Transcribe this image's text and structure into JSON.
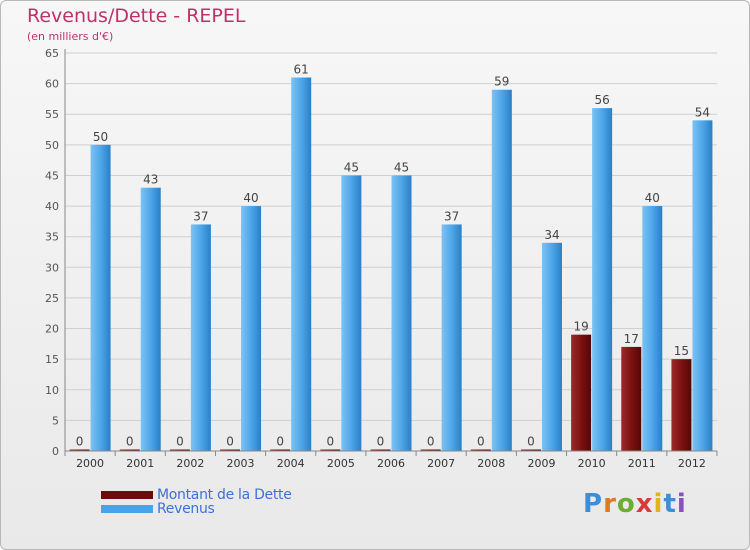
{
  "title": "Revenus/Dette - REPEL",
  "subtitle": "(en milliers d'€)",
  "logo": "Proxiti",
  "chart_data": {
    "type": "bar",
    "categories": [
      "2000",
      "2001",
      "2002",
      "2003",
      "2004",
      "2005",
      "2006",
      "2007",
      "2008",
      "2009",
      "2010",
      "2011",
      "2012"
    ],
    "series": [
      {
        "name": "Montant de la Dette",
        "color": "#7a0f0f",
        "values": [
          0,
          0,
          0,
          0,
          0,
          0,
          0,
          0,
          0,
          0,
          19,
          17,
          15
        ]
      },
      {
        "name": "Revenus",
        "color": "#4aa3e6",
        "values": [
          50,
          43,
          37,
          40,
          61,
          45,
          45,
          37,
          59,
          34,
          56,
          40,
          54
        ]
      }
    ],
    "yticks": [
      0,
      5,
      10,
      15,
      20,
      25,
      30,
      35,
      40,
      45,
      50,
      55,
      60,
      65
    ],
    "ylim": [
      0,
      65
    ],
    "grid": true,
    "legend": "bottom-left"
  }
}
